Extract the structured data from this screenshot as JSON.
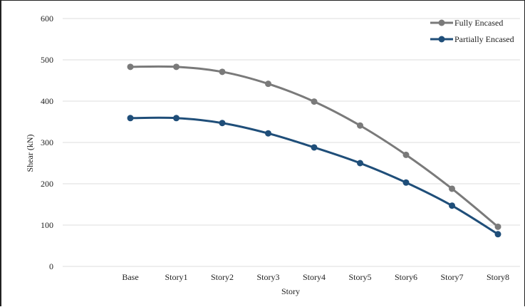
{
  "chart_data": {
    "type": "line",
    "title": "",
    "xlabel": "Story",
    "ylabel": "Shear (kN)",
    "categories": [
      "Base",
      "Story1",
      "Story2",
      "Story3",
      "Story4",
      "Story5",
      "Story6",
      "Story7",
      "Story8"
    ],
    "ylim": [
      0,
      600
    ],
    "yticks": [
      0,
      100,
      200,
      300,
      400,
      500,
      600
    ],
    "grid": "horizontal",
    "legend_position": "top-right",
    "series": [
      {
        "name": "Fully Encased",
        "color": "#7a7a7a",
        "values": [
          483,
          483,
          471,
          442,
          399,
          341,
          270,
          188,
          96
        ]
      },
      {
        "name": "Partially Encased",
        "color": "#1f4e79",
        "values": [
          359,
          359,
          347,
          322,
          288,
          250,
          203,
          147,
          78
        ]
      }
    ]
  }
}
